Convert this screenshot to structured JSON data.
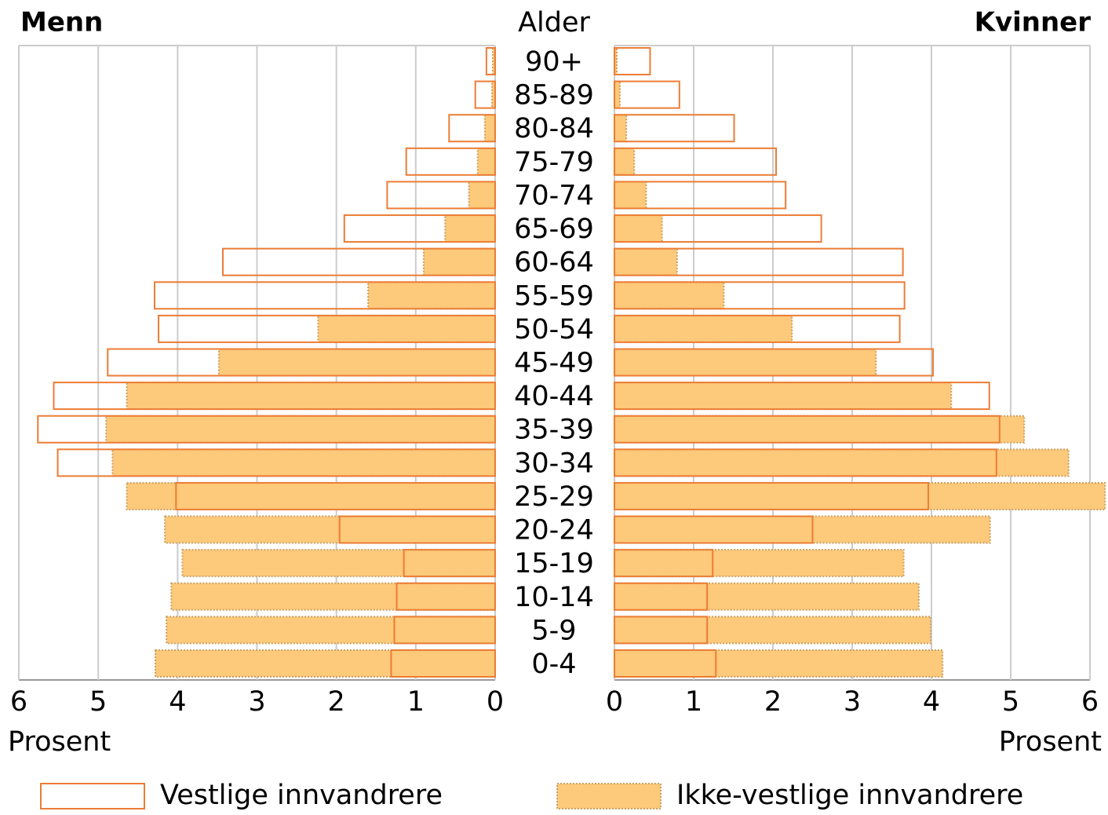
{
  "chart_data": {
    "type": "pyramid",
    "left_title": "Menn",
    "right_title": "Kvinner",
    "category_label": "Alder",
    "x_label": "Prosent",
    "categories": [
      "90+",
      "85-89",
      "80-84",
      "75-79",
      "70-74",
      "65-69",
      "60-64",
      "55-59",
      "50-54",
      "45-49",
      "40-44",
      "35-39",
      "30-34",
      "25-29",
      "20-24",
      "15-19",
      "10-14",
      "5-9",
      "0-4"
    ],
    "xlim": [
      0,
      6
    ],
    "xticks": [
      0,
      1,
      2,
      3,
      4,
      5,
      6
    ],
    "grid": true,
    "series": [
      {
        "name": "Ikke-vestlige innvandrere",
        "color": "#fdc97a",
        "style": "filled",
        "menn": [
          0.03,
          0.04,
          0.13,
          0.22,
          0.33,
          0.63,
          0.9,
          1.6,
          2.23,
          3.48,
          4.64,
          4.9,
          4.82,
          4.64,
          4.16,
          3.94,
          4.08,
          4.14,
          4.28
        ],
        "kvinner": [
          0.03,
          0.07,
          0.15,
          0.25,
          0.4,
          0.6,
          0.79,
          1.38,
          2.24,
          3.3,
          4.25,
          5.17,
          5.73,
          6.19,
          4.74,
          3.65,
          3.84,
          3.99,
          4.14
        ]
      },
      {
        "name": "Vestlige innvandrere",
        "color": "#ec7d35",
        "style": "outline",
        "menn": [
          0.11,
          0.25,
          0.58,
          1.12,
          1.36,
          1.9,
          3.43,
          4.29,
          4.24,
          4.88,
          5.56,
          5.76,
          5.51,
          4.02,
          1.96,
          1.15,
          1.24,
          1.27,
          1.31
        ],
        "kvinner": [
          0.45,
          0.82,
          1.51,
          2.04,
          2.16,
          2.61,
          3.64,
          3.66,
          3.6,
          4.02,
          4.73,
          4.86,
          4.82,
          3.96,
          2.5,
          1.24,
          1.17,
          1.17,
          1.28
        ]
      }
    ]
  }
}
